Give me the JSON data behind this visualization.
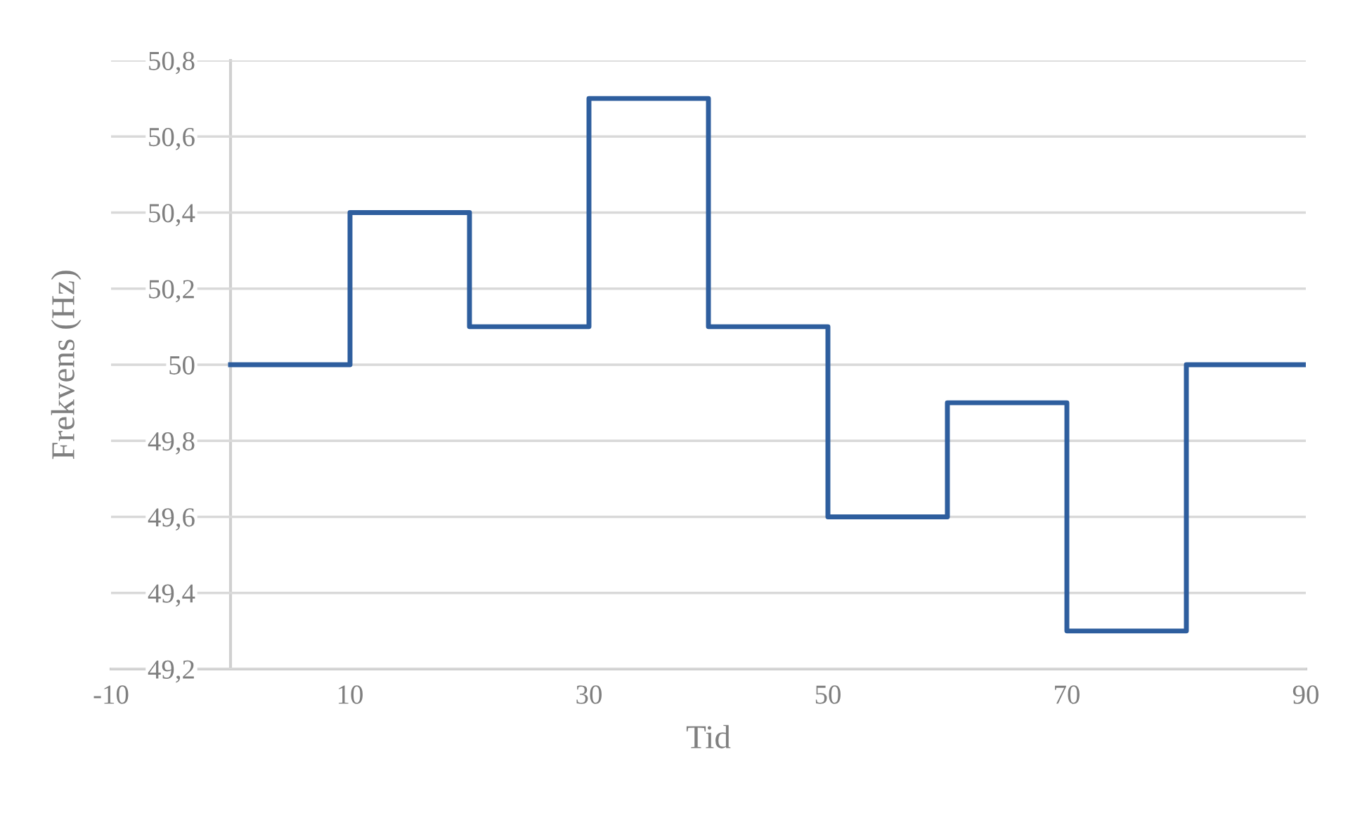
{
  "chart_data": {
    "type": "step",
    "xlabel": "Tid",
    "ylabel": "Frekvens (Hz)",
    "x": [
      0,
      10,
      20,
      30,
      40,
      50,
      60,
      70,
      80,
      90
    ],
    "series": [
      {
        "color": "#2e5e9e",
        "values": [
          50,
          50.4,
          50.1,
          50.7,
          50.1,
          49.6,
          49.9,
          49.3,
          50,
          50
        ]
      }
    ],
    "xlim": [
      -10,
      90
    ],
    "xticks": [
      -10,
      10,
      30,
      50,
      70,
      90
    ],
    "ylim": [
      49.2,
      50.8
    ],
    "yticks": [
      {
        "value": 49.2,
        "label": "49,2"
      },
      {
        "value": 49.4,
        "label": "49,4"
      },
      {
        "value": 49.6,
        "label": "49,6"
      },
      {
        "value": 49.8,
        "label": "49,8"
      },
      {
        "value": 50,
        "label": "50"
      },
      {
        "value": 50.2,
        "label": "50,2"
      },
      {
        "value": 50.4,
        "label": "50,4"
      },
      {
        "value": 50.6,
        "label": "50,6"
      },
      {
        "value": 50.8,
        "label": "50,8"
      }
    ],
    "grid": "y",
    "line_style": "solid",
    "marker": "none"
  }
}
